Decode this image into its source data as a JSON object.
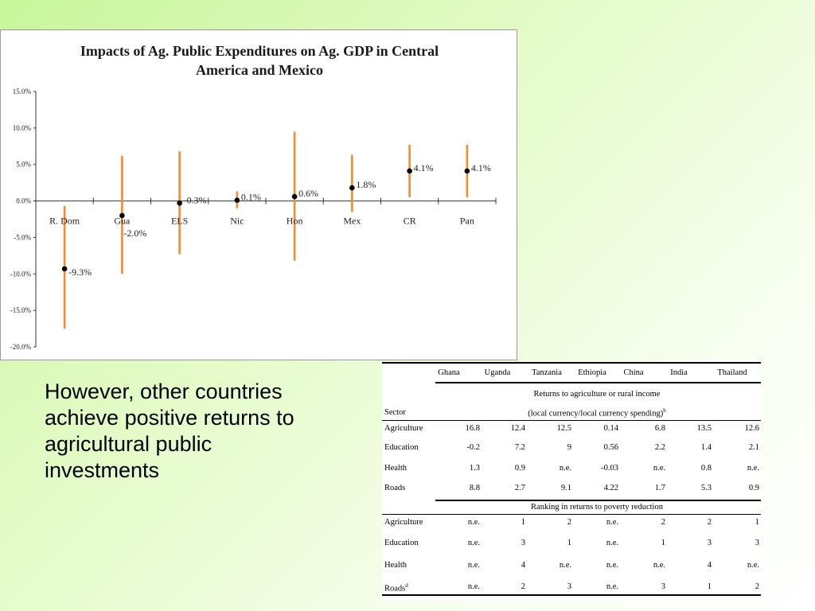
{
  "chart_data": {
    "type": "scatter",
    "title_lines": [
      "Impacts of Ag. Public Expenditures on Ag. GDP in Central",
      "America and Mexico"
    ],
    "categories": [
      "R. Dom",
      "Gua",
      "ELS",
      "Nic",
      "Hon",
      "Mex",
      "CR",
      "Pan"
    ],
    "values": [
      -9.3,
      -2.0,
      -0.3,
      0.1,
      0.6,
      1.8,
      4.1,
      4.1
    ],
    "value_labels": [
      "-9.3%",
      "-2.0%",
      "-0.3%",
      "0.1%",
      "0.6%",
      "1.8%",
      "4.1%",
      "4.1%"
    ],
    "error_low": [
      -17.5,
      -10.0,
      -7.3,
      -1.0,
      -8.2,
      -1.5,
      0.5,
      0.5
    ],
    "error_high": [
      -0.7,
      6.2,
      6.8,
      1.3,
      9.5,
      6.3,
      7.7,
      7.7
    ],
    "ylim": [
      -20,
      15
    ],
    "yticks": [
      15,
      10,
      5,
      0,
      -5,
      -10,
      -15,
      -20
    ],
    "ytick_labels": [
      "15.0%",
      "10.0%",
      "5.0%",
      "0.0%",
      "-5.0%",
      "-10.0%",
      "-15.0%",
      "-20.0%"
    ],
    "grid": false,
    "colors": {
      "error_bar": "#f58a2e",
      "point": "#000000",
      "axis": "#333333"
    }
  },
  "body_text": "However, other countries achieve positive returns to agricultural public investments",
  "table": {
    "countries": [
      "Ghana",
      "Uganda",
      "Tanzania",
      "Ethiopia",
      "China",
      "India",
      "Thailand"
    ],
    "sector_header": "Sector",
    "returns_header_1": "Returns to agriculture or rural income",
    "returns_header_2": "(local currency/local currency spending)",
    "returns_sup": "b",
    "returns_rows": [
      {
        "sector": "Agriculture",
        "values": [
          "16.8",
          "12.4",
          "12.5",
          "0.14",
          "6.8",
          "13.5",
          "12.6"
        ]
      },
      {
        "sector": "Education",
        "values": [
          "-0.2",
          "7.2",
          "9",
          "0.56",
          "2.2",
          "1.4",
          "2.1"
        ]
      },
      {
        "sector": "Health",
        "values": [
          "1.3",
          "0.9",
          "n.e.",
          "-0.03",
          "n.e.",
          "0.8",
          "n.e."
        ]
      },
      {
        "sector": "Roads",
        "values": [
          "8.8",
          "2.7",
          "9.1",
          "4.22",
          "1.7",
          "5.3",
          "0.9"
        ]
      }
    ],
    "ranking_header": "Ranking in returns to poverty reduction",
    "ranking_rows": [
      {
        "sector": "Agriculture",
        "values": [
          "n.e.",
          "1",
          "2",
          "n.e.",
          "2",
          "2",
          "1"
        ]
      },
      {
        "sector": "Education",
        "values": [
          "n.e.",
          "3",
          "1",
          "n.e.",
          "1",
          "3",
          "3"
        ]
      },
      {
        "sector": "Health",
        "values": [
          "n.e.",
          "4",
          "n.e.",
          "n.e.",
          "n.e.",
          "4",
          "n.e."
        ]
      },
      {
        "sector": "Roads",
        "sup": "d",
        "values": [
          "n.e.",
          "2",
          "3",
          "n.e.",
          "3",
          "1",
          "2"
        ]
      }
    ]
  }
}
